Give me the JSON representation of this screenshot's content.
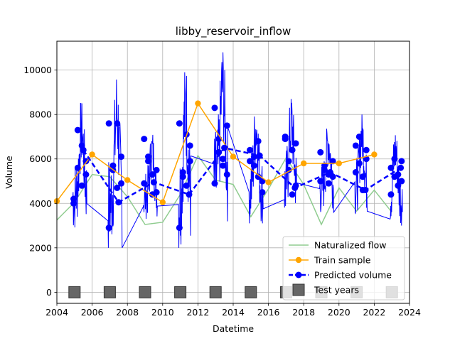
{
  "chart_data": {
    "type": "line",
    "title": "libby_reservoir_inflow",
    "xlabel": "Datetime",
    "ylabel": "Volume",
    "xlim": [
      2004,
      2024
    ],
    "ylim": [
      -500,
      11300
    ],
    "grid": true,
    "legend_position": "lower-right",
    "x_ticks": [
      2004,
      2006,
      2008,
      2010,
      2012,
      2014,
      2016,
      2018,
      2020,
      2022,
      2024
    ],
    "x_tick_labels": [
      "2004",
      "2006",
      "2008",
      "2010",
      "2012",
      "2014",
      "2016",
      "2018",
      "2020",
      "2022",
      "2024"
    ],
    "y_ticks": [
      0,
      2000,
      4000,
      6000,
      8000,
      10000
    ],
    "y_tick_labels": [
      "0",
      "2000",
      "4000",
      "6000",
      "8000",
      "10000"
    ],
    "series": [
      {
        "name": "Naturalized flow",
        "color": "#8fcc8f",
        "style": "line",
        "x": [
          2004,
          2005,
          2006,
          2007,
          2008,
          2009,
          2010,
          2011,
          2012,
          2013,
          2014,
          2015,
          2016,
          2017,
          2018,
          2019,
          2020,
          2021,
          2022,
          2023
        ],
        "y": [
          3250,
          4050,
          5300,
          5200,
          4300,
          3050,
          3150,
          4400,
          6150,
          5050,
          4850,
          3400,
          4650,
          6050,
          4850,
          3050,
          4700,
          3650,
          4600,
          3600
        ]
      },
      {
        "name": "Train sample",
        "color": "#ffa500",
        "style": "line-marker",
        "x": [
          2004,
          2006,
          2008,
          2010,
          2012,
          2014,
          2016,
          2018,
          2020,
          2022
        ],
        "y": [
          4100,
          6200,
          5050,
          4050,
          8500,
          6100,
          4950,
          5800,
          5800,
          6200
        ]
      },
      {
        "name": "Predicted volume",
        "color": "#0000ff",
        "style": "dashed-marker",
        "x": [
          2005.5,
          2007.5,
          2009.5,
          2011.5,
          2013.5,
          2015.5,
          2017.5,
          2019.5,
          2021.5,
          2023.5
        ],
        "y": [
          6400,
          4050,
          4950,
          4400,
          6500,
          6150,
          4700,
          5400,
          4600,
          5600
        ]
      },
      {
        "name": "Test years",
        "color": "#666666",
        "style": "square-marker",
        "x": [
          2005,
          2007,
          2009,
          2011,
          2013,
          2015,
          2017,
          2019,
          2021,
          2023
        ],
        "y": [
          0,
          0,
          0,
          0,
          0,
          0,
          0,
          0,
          0,
          0
        ]
      }
    ],
    "observed_seasons": [
      {
        "start": 2004.9,
        "peak": 2005.4,
        "end": 2005.7,
        "low": 2900,
        "high": 8500,
        "clusterY": [
          4000,
          5600,
          4800,
          5900,
          4200,
          7300,
          6600,
          5300
        ]
      },
      {
        "start": 2006.9,
        "peak": 2007.4,
        "end": 2007.7,
        "low": 2000,
        "high": 9600,
        "clusterY": [
          7600,
          5700,
          4700,
          6100,
          2900,
          5500,
          7600,
          4900
        ]
      },
      {
        "start": 2008.9,
        "peak": 2009.4,
        "end": 2009.7,
        "low": 3300,
        "high": 7100,
        "clusterY": [
          4900,
          5900,
          5300,
          4500,
          6900,
          6100,
          4400,
          5500
        ]
      },
      {
        "start": 2010.9,
        "peak": 2011.3,
        "end": 2011.6,
        "low": 2000,
        "high": 9900,
        "clusterY": [
          7600,
          5400,
          4800,
          6600,
          2900,
          5200,
          7100,
          5900
        ]
      },
      {
        "start": 2012.9,
        "peak": 2013.4,
        "end": 2013.7,
        "low": 3100,
        "high": 10800,
        "clusterY": [
          8300,
          6300,
          5700,
          7500,
          4900,
          6900,
          6000,
          5300
        ]
      },
      {
        "start": 2014.9,
        "peak": 2015.3,
        "end": 2015.7,
        "low": 3100,
        "high": 8500,
        "clusterY": [
          6400,
          5700,
          6800,
          5000,
          5900,
          6100,
          5200,
          4500
        ]
      },
      {
        "start": 2016.9,
        "peak": 2017.3,
        "end": 2017.6,
        "low": 3300,
        "high": 8700,
        "clusterY": [
          7000,
          5500,
          6400,
          4800,
          6900,
          5900,
          4400,
          6700
        ]
      },
      {
        "start": 2018.9,
        "peak": 2019.4,
        "end": 2019.7,
        "low": 3600,
        "high": 7600,
        "clusterY": [
          5000,
          5700,
          5300,
          5900,
          6300,
          5500,
          4900,
          5200
        ]
      },
      {
        "start": 2020.9,
        "peak": 2021.3,
        "end": 2021.6,
        "low": 3500,
        "high": 8000,
        "clusterY": [
          6600,
          5800,
          4600,
          6000,
          5400,
          7000,
          5200,
          6400
        ]
      },
      {
        "start": 2022.9,
        "peak": 2023.2,
        "end": 2023.6,
        "low": 3000,
        "high": 7200,
        "clusterY": [
          5600,
          5200,
          4800,
          5900,
          4400,
          6000,
          5300,
          5000
        ]
      }
    ]
  }
}
